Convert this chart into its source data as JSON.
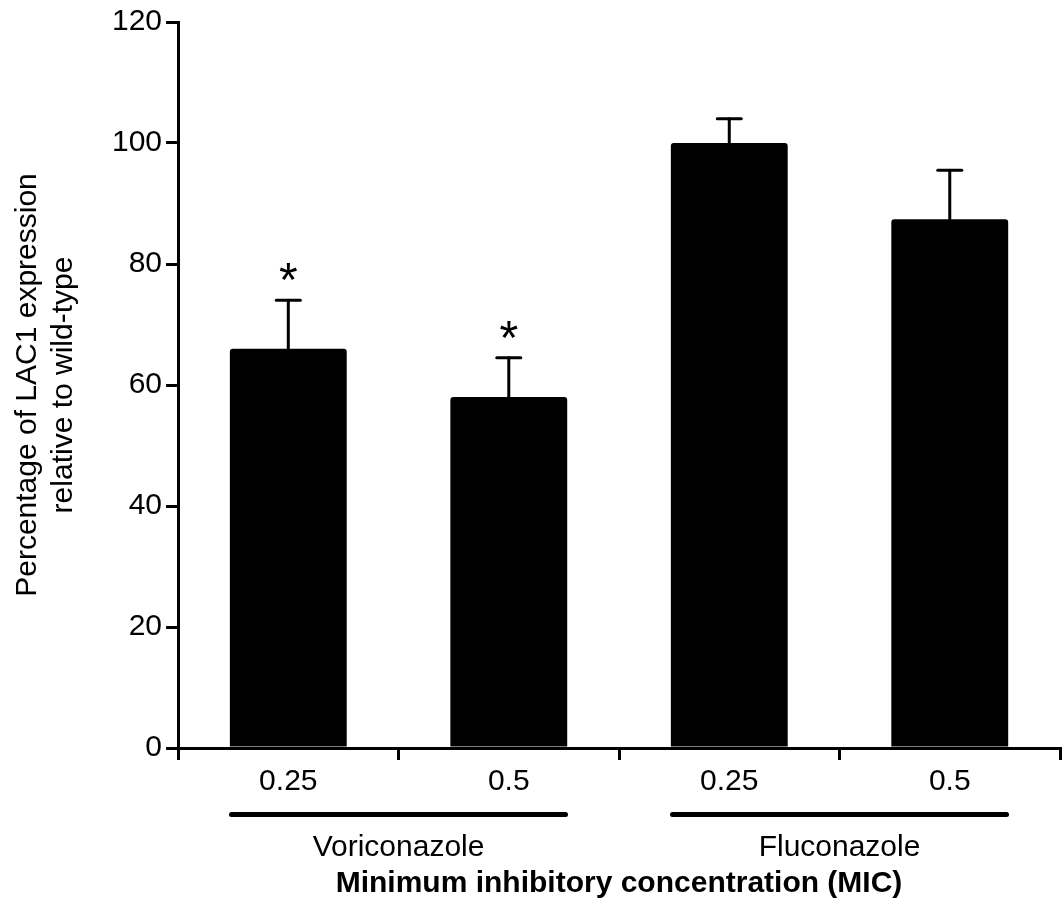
{
  "chart_data": {
    "type": "bar",
    "categories": [
      "0.25",
      "0.5",
      "0.25",
      "0.5"
    ],
    "values": [
      66,
      58,
      100,
      87.4
    ],
    "errors": [
      [
        66,
        74
      ],
      [
        58,
        64.5
      ],
      [
        100,
        104
      ],
      [
        87.4,
        95.5
      ]
    ],
    "color": "#000000",
    "ylim": [
      0,
      120
    ],
    "yticks": [
      0,
      20,
      40,
      60,
      80,
      100,
      120
    ],
    "ylabel": "Percentage of LAC1 expression\nrelative to wild-type",
    "xlabel": "Minimum inhibitory concentration (MIC)",
    "grid": false,
    "legend": false,
    "annotations": [
      {
        "text": "*",
        "x": "0.25",
        "y": 74
      },
      {
        "text": "*",
        "x": "0.5",
        "y": 64.5
      },
      "Voriconazole",
      "Fluconazole"
    ]
  }
}
